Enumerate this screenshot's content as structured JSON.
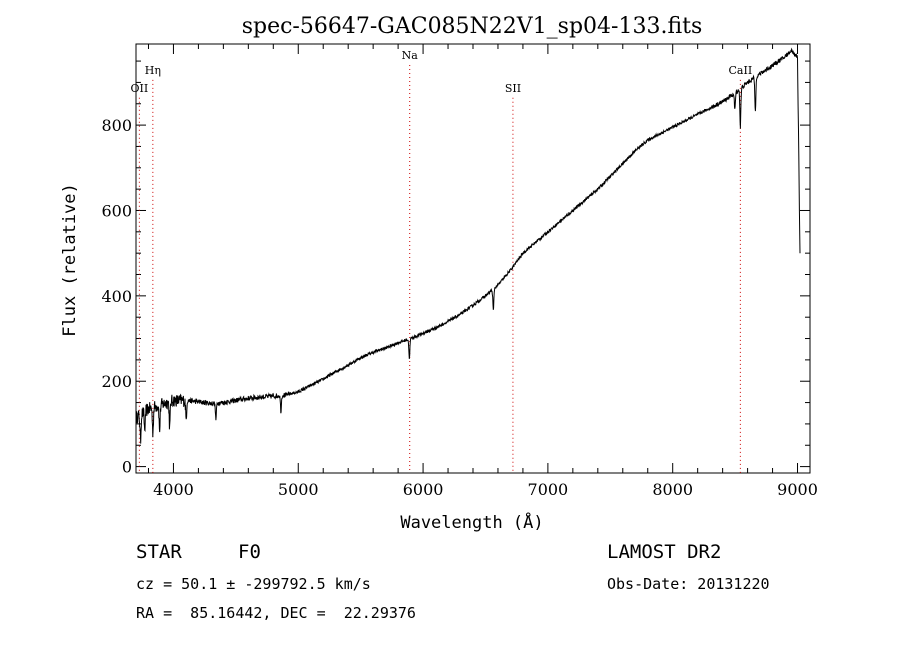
{
  "chart_data": {
    "type": "line",
    "title": "spec-56647-GAC085N22V1_sp04-133.fits",
    "xlabel": "Wavelength (Å)",
    "ylabel": "Flux (relative)",
    "xlim": [
      3700,
      9100
    ],
    "ylim": [
      -15,
      990
    ],
    "xticks": [
      4000,
      5000,
      6000,
      7000,
      8000,
      9000
    ],
    "yticks": [
      0,
      200,
      400,
      600,
      800
    ],
    "grid": false,
    "legend": "none",
    "series": [
      {
        "x": [
          3700,
          3750,
          3800,
          3850,
          3900,
          3950,
          4000,
          4100,
          4200,
          4300,
          4400,
          4500,
          4600,
          4700,
          4800,
          4900,
          5000,
          5100,
          5200,
          5300,
          5400,
          5500,
          5600,
          5700,
          5800,
          5900,
          6000,
          6100,
          6200,
          6300,
          6400,
          6500,
          6600,
          6700,
          6800,
          6900,
          7000,
          7100,
          7200,
          7300,
          7400,
          7500,
          7600,
          7700,
          7800,
          7900,
          8000,
          8100,
          8200,
          8300,
          8400,
          8500,
          8600,
          8700,
          8800,
          8900,
          8950,
          9000,
          9020
        ],
        "y": [
          115,
          125,
          135,
          140,
          145,
          150,
          155,
          155,
          152,
          148,
          150,
          155,
          160,
          163,
          165,
          168,
          175,
          190,
          205,
          222,
          238,
          255,
          268,
          278,
          290,
          300,
          312,
          325,
          340,
          357,
          378,
          400,
          425,
          460,
          500,
          525,
          550,
          575,
          600,
          625,
          650,
          680,
          710,
          740,
          765,
          780,
          795,
          810,
          825,
          840,
          855,
          875,
          900,
          920,
          940,
          960,
          975,
          960,
          500
        ],
        "color": "#000000"
      }
    ],
    "absorption_dips": [
      {
        "x": 3736,
        "y": 60
      },
      {
        "x": 3770,
        "y": 85
      },
      {
        "x": 3835,
        "y": 80
      },
      {
        "x": 3889,
        "y": 82
      },
      {
        "x": 3970,
        "y": 90
      },
      {
        "x": 4102,
        "y": 110
      },
      {
        "x": 4340,
        "y": 110
      },
      {
        "x": 4861,
        "y": 130
      },
      {
        "x": 5890,
        "y": 255
      },
      {
        "x": 6563,
        "y": 365
      },
      {
        "x": 8498,
        "y": 835
      },
      {
        "x": 8542,
        "y": 795
      },
      {
        "x": 8662,
        "y": 830
      }
    ],
    "annotations": [
      {
        "label": "Hη",
        "x": 3835,
        "label_y": 920
      },
      {
        "label": "OII",
        "x": 3727,
        "label_y": 878
      },
      {
        "label": "Na",
        "x": 5893,
        "label_y": 955
      },
      {
        "label": "SII",
        "x": 6720,
        "label_y": 878
      },
      {
        "label": "CaII",
        "x": 8542,
        "label_y": 920
      }
    ],
    "annotation_line_color": "#cc0000"
  },
  "info": {
    "object_class": "STAR",
    "subclass": "F0",
    "survey": "LAMOST DR2",
    "velocity": "cz = 50.1 ± -299792.5 km/s",
    "obs_date": "Obs-Date: 20131220",
    "coords": "RA =  85.16442, DEC =  22.29376"
  }
}
